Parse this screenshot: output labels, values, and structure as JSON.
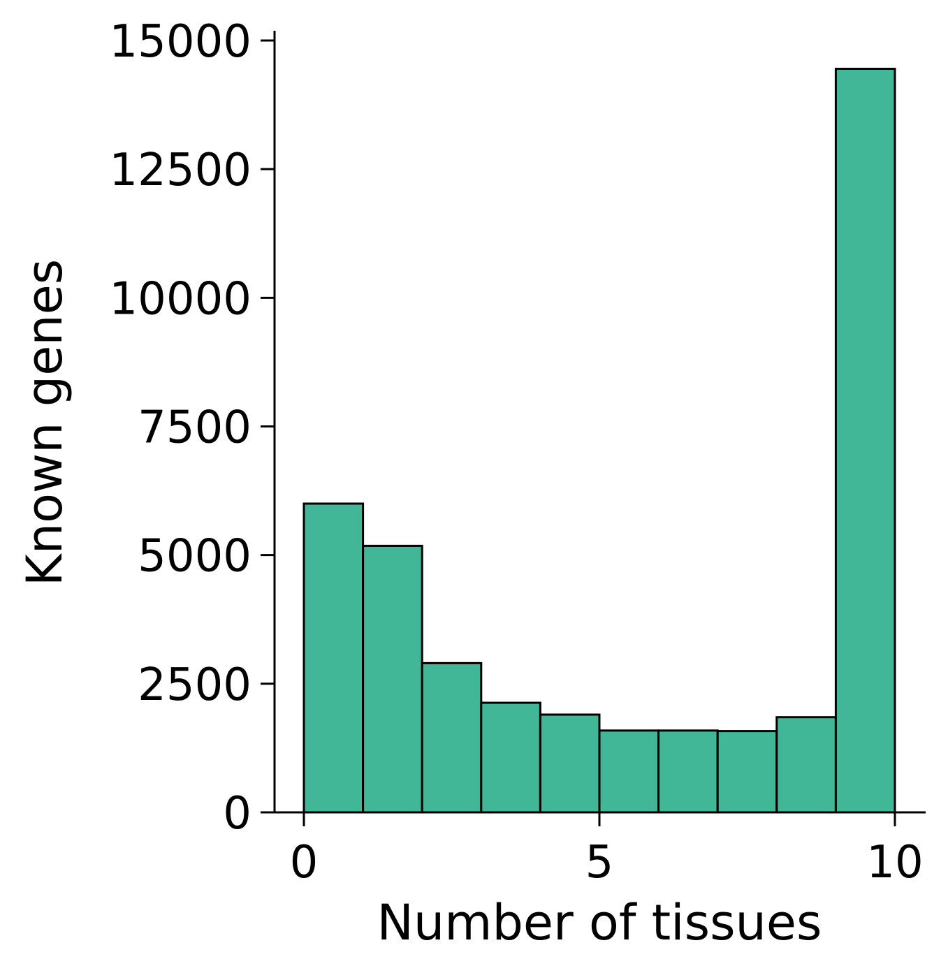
{
  "chart_data": {
    "type": "bar",
    "subtype": "histogram",
    "title": "",
    "xlabel": "Number of tissues",
    "ylabel": "Known genes",
    "bins": [
      {
        "start": 0,
        "end": 1,
        "value": 6000
      },
      {
        "start": 1,
        "end": 2,
        "value": 5180
      },
      {
        "start": 2,
        "end": 3,
        "value": 2900
      },
      {
        "start": 3,
        "end": 4,
        "value": 2130
      },
      {
        "start": 4,
        "end": 5,
        "value": 1900
      },
      {
        "start": 5,
        "end": 6,
        "value": 1590
      },
      {
        "start": 6,
        "end": 7,
        "value": 1590
      },
      {
        "start": 7,
        "end": 8,
        "value": 1580
      },
      {
        "start": 8,
        "end": 9,
        "value": 1850
      },
      {
        "start": 9,
        "end": 10,
        "value": 14450
      }
    ],
    "xlim": [
      -0.5,
      10.5
    ],
    "ylim": [
      0,
      15200
    ],
    "xticks": [
      0,
      5,
      10
    ],
    "xtick_labels": [
      "0",
      "5",
      "10"
    ],
    "yticks": [
      0,
      2500,
      5000,
      7500,
      10000,
      12500,
      15000
    ],
    "ytick_labels": [
      "0",
      "2500",
      "5000",
      "7500",
      "10000",
      "12500",
      "15000"
    ],
    "bar_color": "#42b798",
    "edge_color": "#000000",
    "grid": false,
    "legend": "none"
  }
}
